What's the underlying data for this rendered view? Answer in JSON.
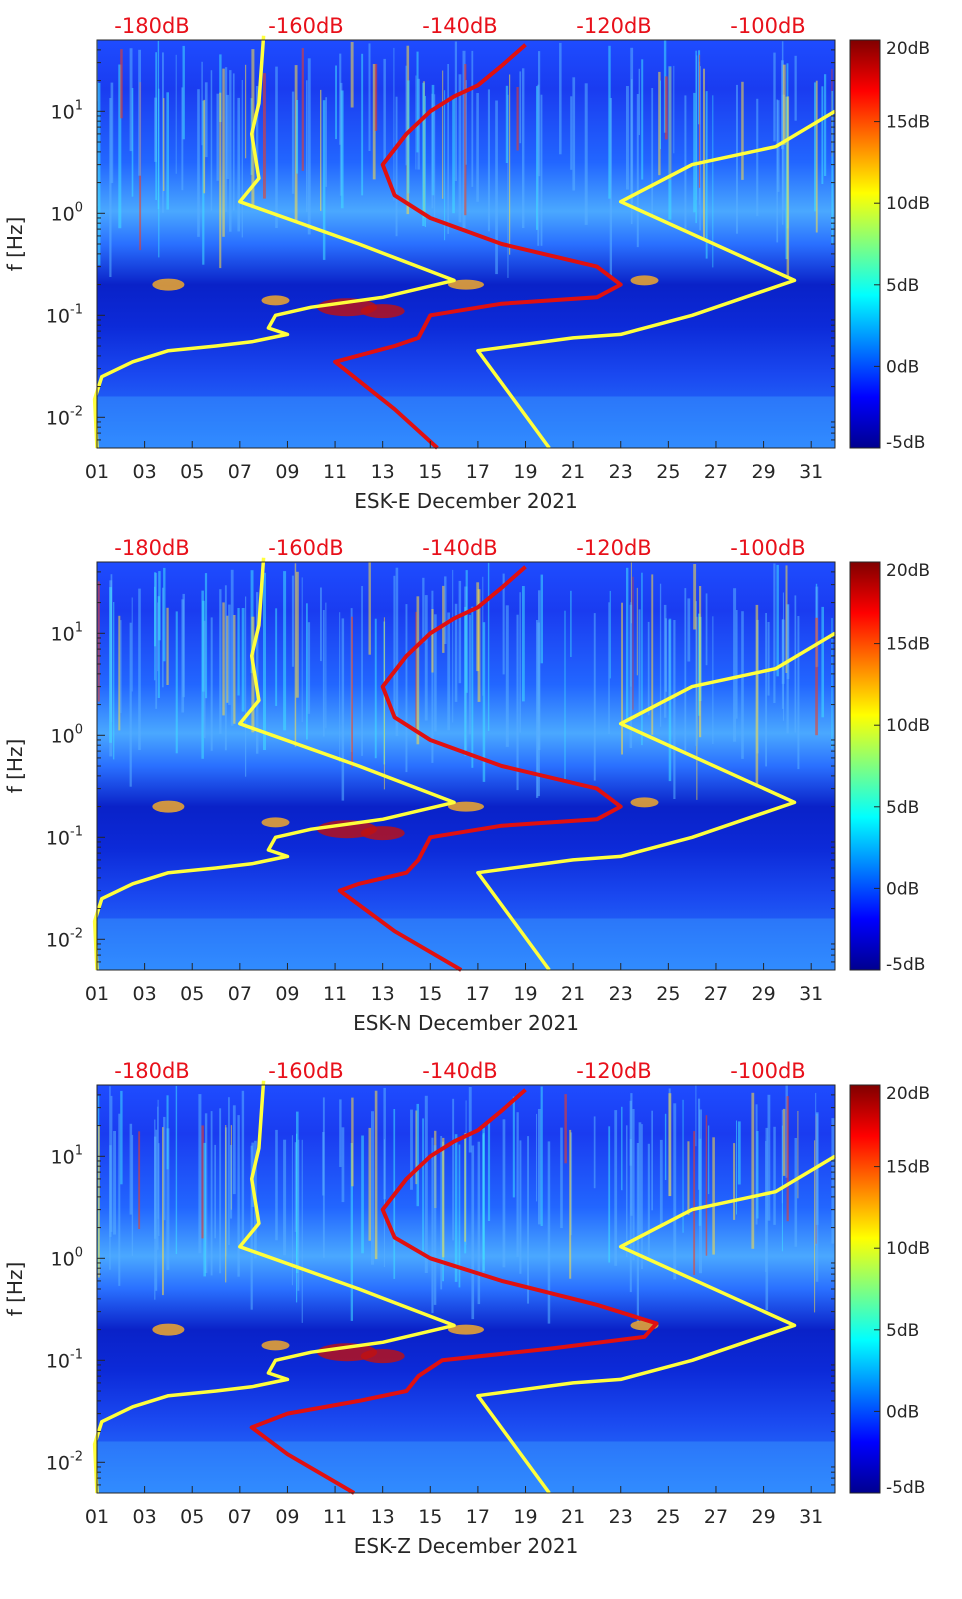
{
  "chart_data": [
    {
      "type": "heatmap",
      "title": "",
      "xlabel": "ESK-E December 2021",
      "ylabel": "f [Hz]",
      "x_ticks": [
        "01",
        "03",
        "05",
        "07",
        "09",
        "11",
        "13",
        "15",
        "17",
        "19",
        "21",
        "23",
        "25",
        "27",
        "29",
        "31"
      ],
      "xlim": [
        1,
        32
      ],
      "y_ticks": [
        {
          "base": "10",
          "exp": "-2",
          "v": 0.01
        },
        {
          "base": "10",
          "exp": "-1",
          "v": 0.1
        },
        {
          "base": "10",
          "exp": "0",
          "v": 1
        },
        {
          "base": "10",
          "exp": "1",
          "v": 10
        }
      ],
      "ylim": [
        0.005,
        50
      ],
      "y_scale": "log",
      "top_labels": [
        "-180dB",
        "-160dB",
        "-140dB",
        "-120dB",
        "-100dB"
      ],
      "colorbar": {
        "ticks": [
          "20dB",
          "15dB",
          "10dB",
          "5dB",
          "0dB",
          "-5dB"
        ],
        "range": [
          -5,
          20
        ],
        "colormap": "jet"
      },
      "series": [
        {
          "name": "yellow-curve-1",
          "color": "#ffff3c",
          "points": [
            [
              1.0,
              0.005
            ],
            [
              0.9,
              0.015
            ],
            [
              1.2,
              0.025
            ],
            [
              2.5,
              0.035
            ],
            [
              4,
              0.045
            ],
            [
              6,
              0.05
            ],
            [
              7.5,
              0.055
            ],
            [
              9,
              0.065
            ],
            [
              8.2,
              0.075
            ],
            [
              8.5,
              0.1
            ],
            [
              10,
              0.12
            ],
            [
              13,
              0.15
            ],
            [
              16,
              0.22
            ],
            [
              12,
              0.5
            ],
            [
              7,
              1.3
            ],
            [
              7.8,
              2.2
            ],
            [
              7.5,
              6
            ],
            [
              7.8,
              12
            ],
            [
              8,
              55
            ]
          ]
        },
        {
          "name": "yellow-curve-2",
          "color": "#ffff3c",
          "points": [
            [
              20,
              0.005
            ],
            [
              17,
              0.045
            ],
            [
              21,
              0.06
            ],
            [
              23,
              0.065
            ],
            [
              26,
              0.1
            ],
            [
              30.3,
              0.22
            ],
            [
              23,
              1.3
            ],
            [
              26,
              3
            ],
            [
              29.5,
              4.5
            ],
            [
              32,
              10
            ]
          ]
        },
        {
          "name": "red-curve",
          "color": "#e01010",
          "points": [
            [
              15.3,
              0.005
            ],
            [
              13.5,
              0.012
            ],
            [
              11,
              0.035
            ],
            [
              13.5,
              0.05
            ],
            [
              14.5,
              0.06
            ],
            [
              15,
              0.1
            ],
            [
              18,
              0.13
            ],
            [
              22,
              0.15
            ],
            [
              23,
              0.2
            ],
            [
              22,
              0.3
            ],
            [
              18,
              0.5
            ],
            [
              15,
              0.9
            ],
            [
              13.5,
              1.5
            ],
            [
              13,
              3
            ],
            [
              14,
              6
            ],
            [
              15,
              10
            ],
            [
              16,
              14
            ],
            [
              17,
              18
            ],
            [
              18,
              28
            ],
            [
              19,
              45
            ]
          ]
        }
      ]
    },
    {
      "type": "heatmap",
      "title": "",
      "xlabel": "ESK-N December 2021",
      "ylabel": "f [Hz]",
      "x_ticks": [
        "01",
        "03",
        "05",
        "07",
        "09",
        "11",
        "13",
        "15",
        "17",
        "19",
        "21",
        "23",
        "25",
        "27",
        "29",
        "31"
      ],
      "xlim": [
        1,
        32
      ],
      "y_ticks": [
        {
          "base": "10",
          "exp": "-2",
          "v": 0.01
        },
        {
          "base": "10",
          "exp": "-1",
          "v": 0.1
        },
        {
          "base": "10",
          "exp": "0",
          "v": 1
        },
        {
          "base": "10",
          "exp": "1",
          "v": 10
        }
      ],
      "ylim": [
        0.005,
        50
      ],
      "y_scale": "log",
      "top_labels": [
        "-180dB",
        "-160dB",
        "-140dB",
        "-120dB",
        "-100dB"
      ],
      "colorbar": {
        "ticks": [
          "20dB",
          "15dB",
          "10dB",
          "5dB",
          "0dB",
          "-5dB"
        ],
        "range": [
          -5,
          20
        ],
        "colormap": "jet"
      },
      "series": [
        {
          "name": "yellow-curve-1",
          "color": "#ffff3c",
          "points": [
            [
              1.0,
              0.005
            ],
            [
              0.9,
              0.015
            ],
            [
              1.2,
              0.025
            ],
            [
              2.5,
              0.035
            ],
            [
              4,
              0.045
            ],
            [
              6,
              0.05
            ],
            [
              7.5,
              0.055
            ],
            [
              9,
              0.065
            ],
            [
              8.2,
              0.075
            ],
            [
              8.5,
              0.1
            ],
            [
              10,
              0.12
            ],
            [
              13,
              0.15
            ],
            [
              16,
              0.22
            ],
            [
              12,
              0.5
            ],
            [
              7,
              1.3
            ],
            [
              7.8,
              2.2
            ],
            [
              7.5,
              6
            ],
            [
              7.8,
              12
            ],
            [
              8,
              55
            ]
          ]
        },
        {
          "name": "yellow-curve-2",
          "color": "#ffff3c",
          "points": [
            [
              20,
              0.005
            ],
            [
              17,
              0.045
            ],
            [
              21,
              0.06
            ],
            [
              23,
              0.065
            ],
            [
              26,
              0.1
            ],
            [
              30.3,
              0.22
            ],
            [
              23,
              1.3
            ],
            [
              26,
              3
            ],
            [
              29.5,
              4.5
            ],
            [
              32,
              10
            ]
          ]
        },
        {
          "name": "red-curve",
          "color": "#e01010",
          "points": [
            [
              16.3,
              0.005
            ],
            [
              13.5,
              0.012
            ],
            [
              11.2,
              0.03
            ],
            [
              12,
              0.035
            ],
            [
              14,
              0.045
            ],
            [
              14.5,
              0.06
            ],
            [
              15,
              0.1
            ],
            [
              18,
              0.13
            ],
            [
              22,
              0.15
            ],
            [
              23,
              0.2
            ],
            [
              22,
              0.3
            ],
            [
              18,
              0.5
            ],
            [
              15,
              0.9
            ],
            [
              13.5,
              1.5
            ],
            [
              13,
              3
            ],
            [
              14,
              6
            ],
            [
              15,
              10
            ],
            [
              16,
              14
            ],
            [
              17,
              18
            ],
            [
              18,
              28
            ],
            [
              19,
              45
            ]
          ]
        }
      ]
    },
    {
      "type": "heatmap",
      "title": "",
      "xlabel": "ESK-Z December 2021",
      "ylabel": "f [Hz]",
      "x_ticks": [
        "01",
        "03",
        "05",
        "07",
        "09",
        "11",
        "13",
        "15",
        "17",
        "19",
        "21",
        "23",
        "25",
        "27",
        "29",
        "31"
      ],
      "xlim": [
        1,
        32
      ],
      "y_ticks": [
        {
          "base": "10",
          "exp": "-2",
          "v": 0.01
        },
        {
          "base": "10",
          "exp": "-1",
          "v": 0.1
        },
        {
          "base": "10",
          "exp": "0",
          "v": 1
        },
        {
          "base": "10",
          "exp": "1",
          "v": 10
        }
      ],
      "ylim": [
        0.005,
        50
      ],
      "y_scale": "log",
      "top_labels": [
        "-180dB",
        "-160dB",
        "-140dB",
        "-120dB",
        "-100dB"
      ],
      "colorbar": {
        "ticks": [
          "20dB",
          "15dB",
          "10dB",
          "5dB",
          "0dB",
          "-5dB"
        ],
        "range": [
          -5,
          20
        ],
        "colormap": "jet"
      },
      "series": [
        {
          "name": "yellow-curve-1",
          "color": "#ffff3c",
          "points": [
            [
              1.0,
              0.005
            ],
            [
              0.9,
              0.015
            ],
            [
              1.2,
              0.025
            ],
            [
              2.5,
              0.035
            ],
            [
              4,
              0.045
            ],
            [
              6,
              0.05
            ],
            [
              7.5,
              0.055
            ],
            [
              9,
              0.065
            ],
            [
              8.2,
              0.075
            ],
            [
              8.5,
              0.1
            ],
            [
              10,
              0.12
            ],
            [
              13,
              0.15
            ],
            [
              16,
              0.22
            ],
            [
              12,
              0.5
            ],
            [
              7,
              1.3
            ],
            [
              7.8,
              2.2
            ],
            [
              7.5,
              6
            ],
            [
              7.8,
              12
            ],
            [
              8,
              55
            ]
          ]
        },
        {
          "name": "yellow-curve-2",
          "color": "#ffff3c",
          "points": [
            [
              20,
              0.005
            ],
            [
              17,
              0.045
            ],
            [
              21,
              0.06
            ],
            [
              23,
              0.065
            ],
            [
              26,
              0.1
            ],
            [
              30.3,
              0.22
            ],
            [
              23,
              1.3
            ],
            [
              26,
              3
            ],
            [
              29.5,
              4.5
            ],
            [
              32,
              10
            ]
          ]
        },
        {
          "name": "red-curve",
          "color": "#e01010",
          "points": [
            [
              11.8,
              0.005
            ],
            [
              9,
              0.012
            ],
            [
              7.5,
              0.022
            ],
            [
              9,
              0.03
            ],
            [
              12,
              0.04
            ],
            [
              14,
              0.05
            ],
            [
              14.5,
              0.07
            ],
            [
              15.5,
              0.1
            ],
            [
              20,
              0.13
            ],
            [
              24,
              0.17
            ],
            [
              24.5,
              0.23
            ],
            [
              22,
              0.35
            ],
            [
              18,
              0.6
            ],
            [
              15,
              1.0
            ],
            [
              13.5,
              1.6
            ],
            [
              13,
              3
            ],
            [
              14,
              6
            ],
            [
              15,
              10
            ],
            [
              16,
              14
            ],
            [
              17,
              18
            ],
            [
              18,
              28
            ],
            [
              19,
              45
            ]
          ]
        }
      ]
    }
  ]
}
